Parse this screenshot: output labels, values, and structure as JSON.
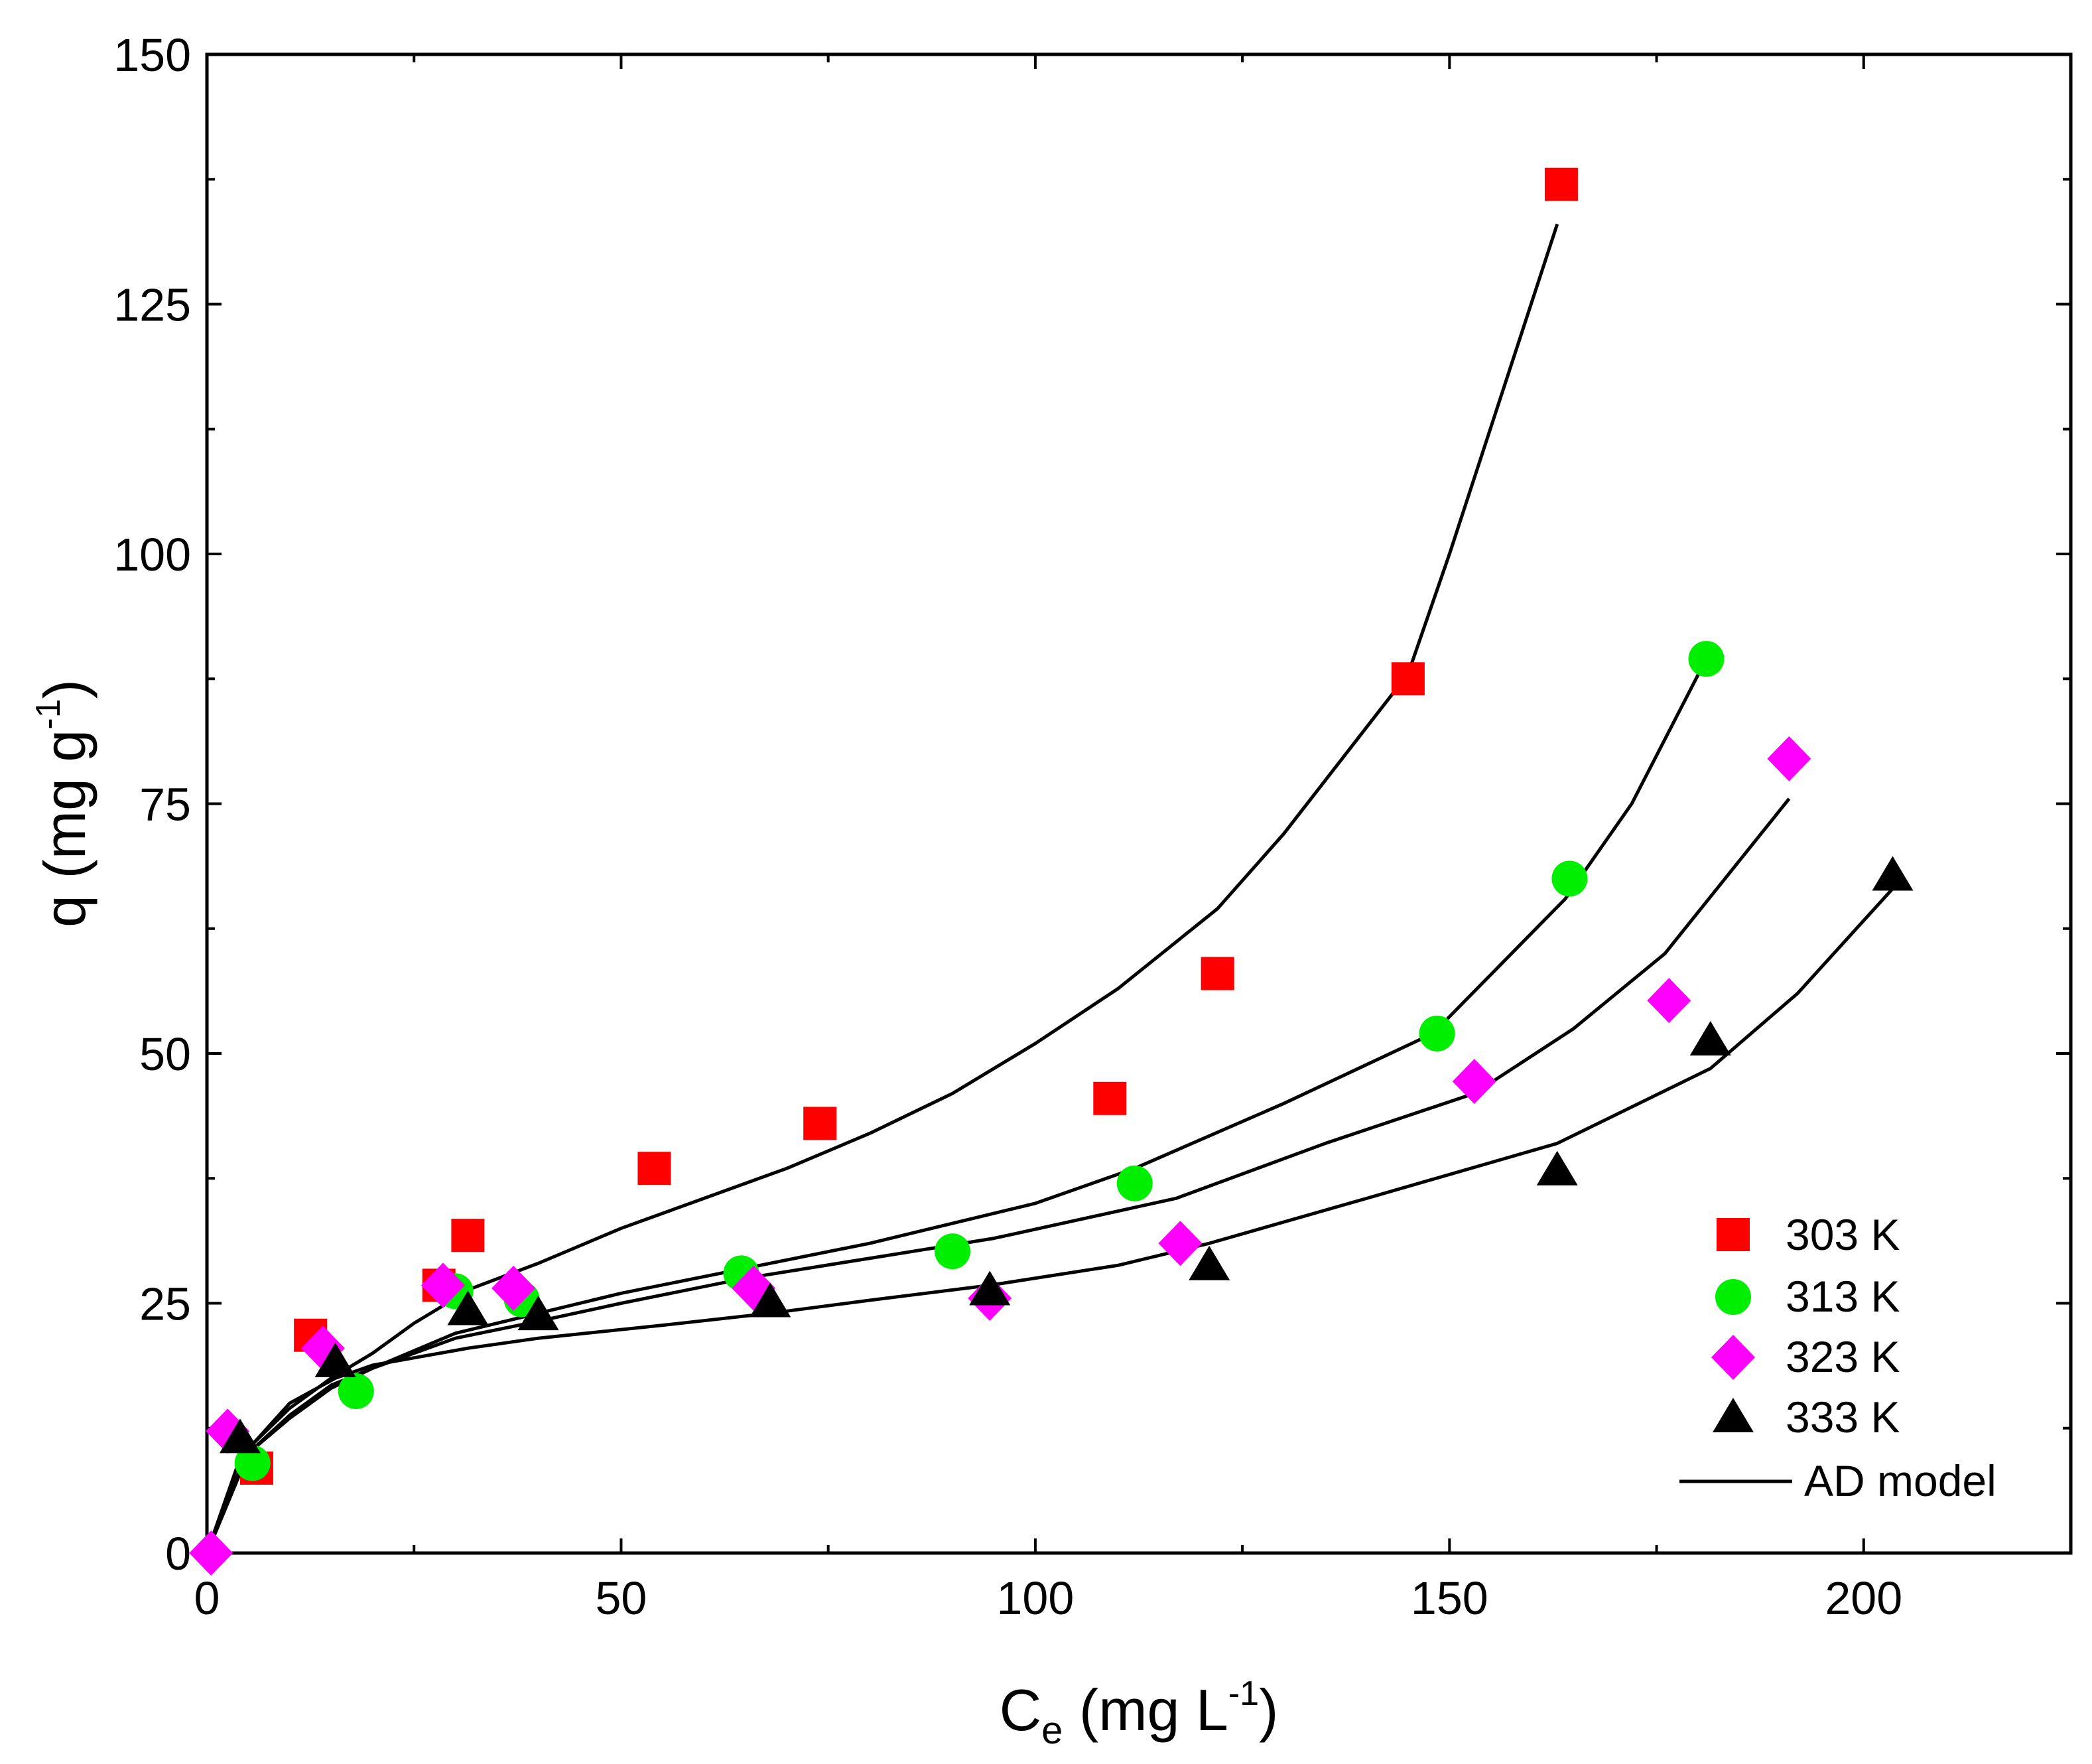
{
  "chart_data": {
    "type": "scatter",
    "title": "",
    "xlabel": {
      "main": "C",
      "sub": "e",
      "unit_open": " (mg L",
      "sup": "-1",
      "unit_close": ")"
    },
    "ylabel": {
      "main": "q (mg g",
      "sup": "-1",
      "close": ")"
    },
    "xlim": [
      0,
      225
    ],
    "ylim": [
      0,
      150
    ],
    "x_ticks": [
      0,
      50,
      100,
      150,
      200
    ],
    "y_ticks": [
      0,
      25,
      50,
      75,
      100,
      125,
      150
    ],
    "x_tick_labels": [
      "0",
      "50",
      "100",
      "150",
      "200"
    ],
    "y_tick_labels": [
      "0",
      "25",
      "50",
      "75",
      "100",
      "125",
      "150"
    ],
    "legend_position": "bottom-right",
    "series": [
      {
        "name": "303 K",
        "marker": "square",
        "color": "#ff0000",
        "x": [
          6,
          12.5,
          28,
          31.5,
          54,
          74,
          109,
          122,
          145,
          163.5
        ],
        "y": [
          8.5,
          21.8,
          26.8,
          31.8,
          38.5,
          43,
          45.5,
          58,
          87.5,
          137
        ],
        "model": {
          "x": [
            0,
            5,
            10,
            15,
            20,
            25,
            32,
            40,
            50,
            60,
            70,
            80,
            90,
            100,
            110,
            122,
            130,
            145,
            150,
            163
          ],
          "y": [
            0,
            10.5,
            14.5,
            17.5,
            20,
            23,
            26.5,
            29,
            32.5,
            35.5,
            38.5,
            42,
            46,
            51,
            56.5,
            64.5,
            72,
            88,
            100,
            133
          ]
        }
      },
      {
        "name": "313 K",
        "marker": "circle",
        "color": "#00ee00",
        "x": [
          5.5,
          18,
          30,
          38,
          64.5,
          90,
          112,
          148.5,
          164.5,
          181
        ],
        "y": [
          9,
          16.2,
          26.2,
          25.4,
          28,
          30.2,
          37,
          52,
          67.5,
          89.5
        ],
        "model": {
          "x": [
            0,
            5,
            10,
            15,
            20,
            30,
            40,
            50,
            65,
            80,
            90,
            100,
            112,
            130,
            148,
            164,
            172,
            181
          ],
          "y": [
            0,
            10,
            13.5,
            16.5,
            18.5,
            22,
            24,
            26,
            28.5,
            31,
            33,
            35,
            38.5,
            45,
            52,
            65.5,
            75,
            89.5
          ]
        }
      },
      {
        "name": "323 K",
        "marker": "diamond",
        "color": "#ff00ff",
        "x": [
          0.5,
          2.5,
          14,
          28.5,
          37,
          66,
          94.5,
          117.5,
          153,
          176.5,
          191
        ],
        "y": [
          0,
          12.2,
          20.5,
          26.8,
          26.5,
          26.5,
          25.5,
          31,
          47.2,
          55.3,
          79.5
        ],
        "model": {
          "x": [
            0,
            5,
            10,
            15,
            20,
            30,
            40,
            50,
            65,
            80,
            95,
            117,
            135,
            153,
            165,
            176,
            191
          ],
          "y": [
            0,
            10,
            13.8,
            16.8,
            18.5,
            21.5,
            23.2,
            25,
            27.5,
            29.5,
            31.5,
            35.5,
            41,
            46,
            52.5,
            60,
            75.5
          ]
        }
      },
      {
        "name": "333 K",
        "marker": "triangle",
        "color": "#000000",
        "x": [
          4,
          15.5,
          31.5,
          40,
          68,
          94.5,
          121,
          163,
          181.5,
          203.5
        ],
        "y": [
          11.2,
          18.8,
          24,
          23.5,
          24.8,
          26,
          28.5,
          38,
          51,
          67.5
        ],
        "model": {
          "x": [
            0,
            4,
            10,
            15.5,
            20,
            31.5,
            40,
            55,
            68,
            80,
            94.5,
            110,
            121,
            140,
            163,
            181.5,
            192,
            203.5
          ],
          "y": [
            0,
            9.5,
            15,
            17.5,
            18.8,
            20.5,
            21.5,
            22.8,
            24,
            25.3,
            26.8,
            28.8,
            31,
            35.5,
            41,
            48.5,
            56,
            66.5
          ]
        }
      }
    ],
    "model_legend_label": "AD model"
  }
}
